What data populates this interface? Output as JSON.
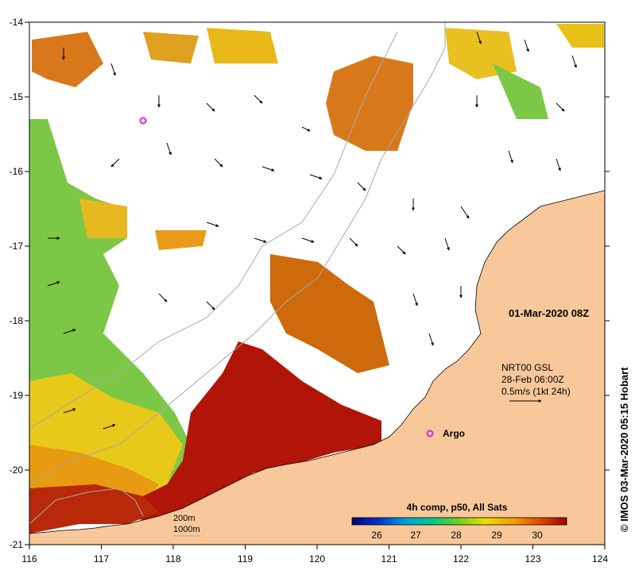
{
  "map": {
    "x_ticks": [
      "116",
      "117",
      "118",
      "119",
      "120",
      "121",
      "122",
      "123",
      "124"
    ],
    "y_ticks": [
      "-14",
      "-15",
      "-16",
      "-17",
      "-18",
      "-19",
      "-20",
      "-21"
    ],
    "date_label": "01-Mar-2020 08Z",
    "current_info": {
      "line1": "NRT00 GSL",
      "line2": "28-Feb 06:00Z",
      "line3": "0.5m/s (1kt 24h)"
    },
    "argo_label": "Argo",
    "depth_legend": {
      "d200": "200m",
      "d1000": "1000m"
    },
    "colorbar": {
      "title": "4h comp, p50, All Sats",
      "ticks": [
        "26",
        "27",
        "28",
        "29",
        "30"
      ]
    },
    "credit": "© IMOS 03-Mar-2020 05:15 Hobart",
    "colors": {
      "land": "#f9c89a",
      "sst_hot": "#b01508",
      "sst_warm": "#cc5a06",
      "sst_mid": "#e8a410",
      "sst_cool": "#7cc846",
      "argo": "#dd22dd"
    }
  }
}
